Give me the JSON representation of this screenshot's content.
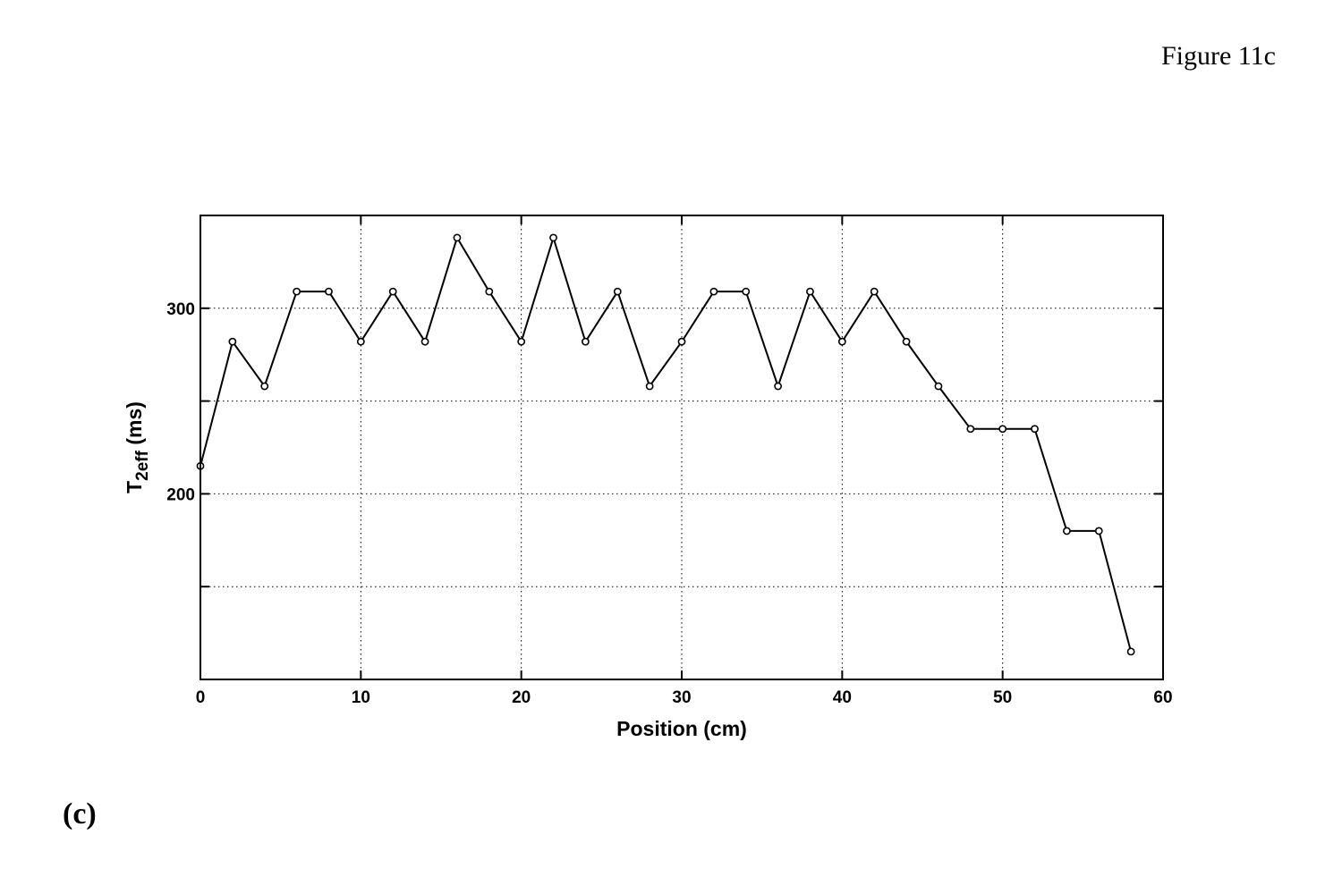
{
  "figure_label": "Figure 11c",
  "panel_label": "(c)",
  "chart_data": {
    "type": "line",
    "title": "",
    "xlabel": "Position (cm)",
    "ylabel_main": "T",
    "ylabel_sub": "2eff",
    "ylabel_rest": " (ms)",
    "xlim": [
      0,
      60
    ],
    "ylim": [
      100,
      350
    ],
    "x_ticks": [
      0,
      10,
      20,
      30,
      40,
      50,
      60
    ],
    "y_ticks": [
      150,
      200,
      250,
      300
    ],
    "y_tick_labels": [
      "",
      "200",
      "",
      "300"
    ],
    "grid": true,
    "marker": "circle",
    "line_color": "#000000",
    "x": [
      0,
      2,
      4,
      6,
      8,
      10,
      12,
      14,
      16,
      18,
      20,
      22,
      24,
      26,
      28,
      30,
      32,
      34,
      36,
      38,
      40,
      42,
      44,
      46,
      48,
      50,
      52,
      54,
      56,
      58
    ],
    "values": [
      215,
      282,
      258,
      309,
      309,
      282,
      309,
      282,
      338,
      309,
      282,
      338,
      282,
      309,
      258,
      282,
      309,
      309,
      258,
      309,
      282,
      309,
      282,
      258,
      235,
      235,
      235,
      180,
      180,
      115
    ]
  }
}
